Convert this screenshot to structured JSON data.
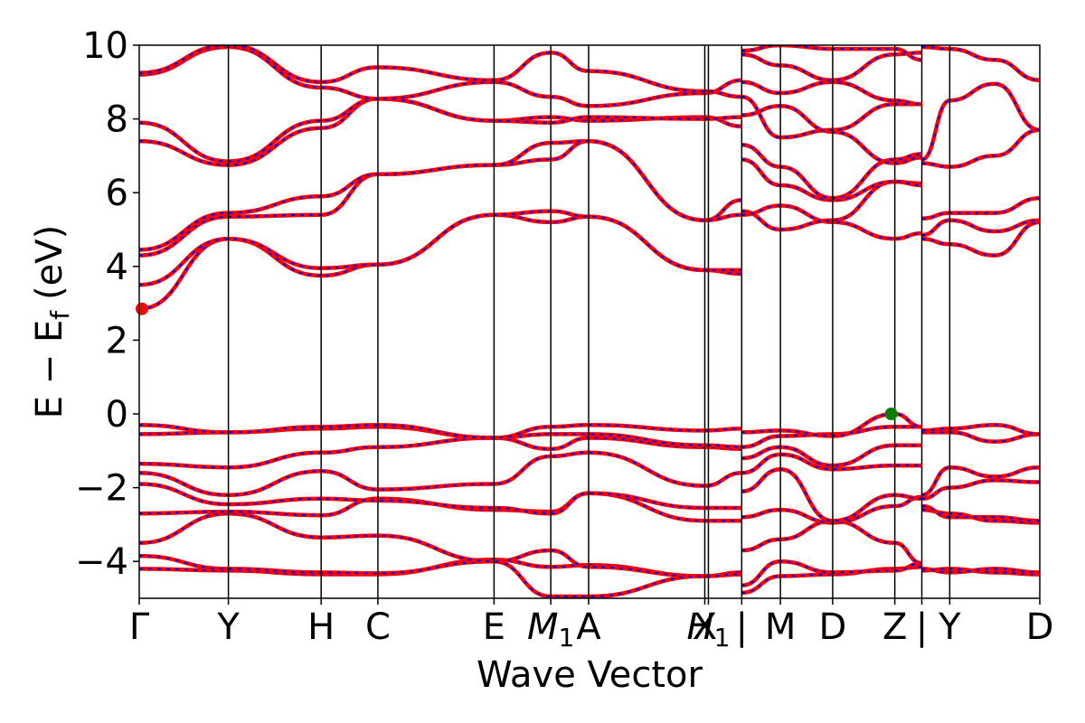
{
  "chart_data": {
    "type": "line",
    "xlabel": "Wave Vector",
    "ylabel": "E − E_f (eV)",
    "ylabel_parts": {
      "main": "E − E",
      "sub": "f",
      "unit": "(eV)"
    },
    "ylim": [
      -5,
      10
    ],
    "xlim": [
      0,
      10
    ],
    "y_ticks": [
      -4,
      -2,
      0,
      2,
      4,
      6,
      8,
      10
    ],
    "y_tick_labels": [
      "−4",
      "−2",
      "0",
      "2",
      "4",
      "6",
      "8",
      "10"
    ],
    "segment_breaks": [
      6.69,
      8.69
    ],
    "kpoints": [
      {
        "x": 0.0,
        "label": "Γ"
      },
      {
        "x": 0.99,
        "label": "Y"
      },
      {
        "x": 2.02,
        "label": "H"
      },
      {
        "x": 2.65,
        "label": "C"
      },
      {
        "x": 3.94,
        "label": "E"
      },
      {
        "x": 4.57,
        "label": "M",
        "sub": "1"
      },
      {
        "x": 4.99,
        "label": "A"
      },
      {
        "x": 6.28,
        "label": "X"
      },
      {
        "x": 6.32,
        "label": "H",
        "sub": "1"
      },
      {
        "x": 6.69,
        "label": "|"
      },
      {
        "x": 7.12,
        "label": "M"
      },
      {
        "x": 7.7,
        "label": "D"
      },
      {
        "x": 8.39,
        "label": "Z"
      },
      {
        "x": 8.69,
        "label": "|"
      },
      {
        "x": 9.0,
        "label": "Y"
      },
      {
        "x": 10.0,
        "label": "D"
      }
    ],
    "series": [
      {
        "style": "solid",
        "color": "#ff0000"
      },
      {
        "style": "dashed",
        "color": "#0000ff"
      }
    ],
    "bands": [
      {
        "x": [
          0,
          0.99,
          2.02,
          2.65,
          3.94,
          4.57,
          4.99,
          6.28,
          6.69
        ],
        "y": [
          -4.2,
          -4.25,
          -4.35,
          -4.35,
          -3.95,
          -4.15,
          -4.1,
          -4.4,
          -4.35
        ]
      },
      {
        "x": [
          0,
          0.99,
          2.02,
          2.65,
          3.94,
          4.57,
          4.99,
          6.28,
          6.69
        ],
        "y": [
          -3.85,
          -4.2,
          -4.3,
          -4.32,
          -4.0,
          -3.7,
          -4.15,
          -4.4,
          -4.3
        ]
      },
      {
        "x": [
          0,
          0.99,
          2.02,
          2.65,
          3.94,
          4.57,
          4.99,
          6.28,
          6.69
        ],
        "y": [
          -3.5,
          -2.7,
          -3.35,
          -3.3,
          -4.0,
          -4.95,
          -4.95,
          -4.4,
          -4.35
        ]
      },
      {
        "x": [
          0,
          0.99,
          2.02,
          2.65,
          3.94,
          4.57,
          4.99,
          6.28,
          6.69
        ],
        "y": [
          -2.7,
          -2.65,
          -2.75,
          -2.3,
          -2.6,
          -2.65,
          -2.15,
          -2.9,
          -2.9
        ]
      },
      {
        "x": [
          0,
          0.99,
          2.02,
          2.65,
          3.94,
          4.57,
          4.99,
          6.28,
          6.69
        ],
        "y": [
          -1.9,
          -2.45,
          -2.3,
          -2.35,
          -2.55,
          -2.7,
          -2.15,
          -2.55,
          -2.55
        ]
      },
      {
        "x": [
          0,
          0.99,
          2.02,
          2.65,
          3.94,
          4.57,
          4.99,
          6.28,
          6.69
        ],
        "y": [
          -1.6,
          -2.2,
          -1.55,
          -2.05,
          -1.9,
          -1.15,
          -1.05,
          -1.95,
          -1.6
        ]
      },
      {
        "x": [
          0,
          0.99,
          2.02,
          2.65,
          3.94,
          4.57,
          4.99,
          6.28,
          6.69
        ],
        "y": [
          -1.35,
          -1.45,
          -1.05,
          -0.9,
          -0.65,
          -0.95,
          -0.65,
          -0.9,
          -0.95
        ]
      },
      {
        "x": [
          0,
          0.99,
          2.02,
          2.65,
          3.94,
          4.57,
          4.99,
          6.28,
          6.69
        ],
        "y": [
          -0.55,
          -0.5,
          -0.4,
          -0.35,
          -0.65,
          -0.55,
          -0.55,
          -0.85,
          -0.9
        ]
      },
      {
        "x": [
          0,
          0.99,
          2.02,
          2.65,
          3.94,
          4.57,
          4.99,
          6.28,
          6.69
        ],
        "y": [
          -0.3,
          -0.5,
          -0.35,
          -0.3,
          -0.65,
          -0.35,
          -0.3,
          -0.45,
          -0.4
        ]
      },
      {
        "x": [
          0,
          0.99,
          2.02,
          2.65,
          3.94,
          4.57,
          4.99,
          6.28,
          6.69
        ],
        "y": [
          2.85,
          4.75,
          3.75,
          4.05,
          5.4,
          5.2,
          5.35,
          3.9,
          3.8
        ]
      },
      {
        "x": [
          0,
          0.99,
          2.02,
          2.65,
          3.94,
          4.57,
          4.99,
          6.28,
          6.69
        ],
        "y": [
          3.5,
          4.75,
          3.95,
          4.05,
          5.4,
          5.5,
          5.35,
          3.9,
          3.9
        ]
      },
      {
        "x": [
          0,
          0.99,
          2.02,
          2.65,
          3.94,
          4.57,
          4.99,
          6.28,
          6.69
        ],
        "y": [
          4.3,
          5.35,
          5.4,
          6.5,
          6.75,
          6.9,
          7.4,
          5.25,
          5.8
        ]
      },
      {
        "x": [
          0,
          0.99,
          2.02,
          2.65,
          3.94,
          4.57,
          4.99,
          6.28,
          6.69
        ],
        "y": [
          4.45,
          5.45,
          5.9,
          6.5,
          6.75,
          7.35,
          7.4,
          5.25,
          5.4
        ]
      },
      {
        "x": [
          0,
          0.99,
          2.02,
          2.65,
          3.94,
          4.57,
          4.99,
          6.28,
          6.69
        ],
        "y": [
          7.4,
          6.75,
          7.75,
          8.55,
          7.95,
          8.05,
          7.95,
          8.05,
          7.8
        ]
      },
      {
        "x": [
          0,
          0.99,
          2.02,
          2.65,
          3.94,
          4.57,
          4.99,
          6.28,
          6.69
        ],
        "y": [
          7.9,
          6.85,
          7.95,
          8.55,
          7.95,
          7.9,
          8.05,
          8.0,
          8.05
        ]
      },
      {
        "x": [
          0,
          0.99,
          2.02,
          2.65,
          3.94,
          4.57,
          4.99,
          6.28,
          6.69
        ],
        "y": [
          9.2,
          9.95,
          8.85,
          8.55,
          9.0,
          8.6,
          8.35,
          8.7,
          9.05
        ]
      },
      {
        "x": [
          0,
          0.99,
          2.02,
          2.65,
          3.94,
          4.57,
          4.99,
          6.28,
          6.69
        ],
        "y": [
          9.25,
          10.0,
          9.0,
          9.4,
          9.05,
          9.8,
          9.3,
          8.75,
          8.6
        ]
      },
      {
        "x": [
          6.69,
          7.12,
          7.7,
          8.39,
          8.69
        ],
        "y": [
          -4.85,
          -4.4,
          -4.35,
          -4.2,
          -4.15
        ]
      },
      {
        "x": [
          6.69,
          7.12,
          7.7,
          8.39,
          8.69
        ],
        "y": [
          -4.65,
          -4.0,
          -4.3,
          -4.25,
          -4.05
        ]
      },
      {
        "x": [
          6.69,
          7.12,
          7.7,
          8.39,
          8.69
        ],
        "y": [
          -3.7,
          -3.4,
          -2.9,
          -3.5,
          -4.05
        ]
      },
      {
        "x": [
          6.69,
          7.12,
          7.7,
          8.39,
          8.69
        ],
        "y": [
          -2.8,
          -2.6,
          -2.95,
          -2.5,
          -2.25
        ]
      },
      {
        "x": [
          6.69,
          7.12,
          7.7,
          8.39,
          8.69
        ],
        "y": [
          -2.1,
          -1.5,
          -2.9,
          -2.2,
          -2.3
        ]
      },
      {
        "x": [
          6.69,
          7.12,
          7.7,
          8.39,
          8.69
        ],
        "y": [
          -1.6,
          -1.1,
          -1.5,
          -1.4,
          -1.4
        ]
      },
      {
        "x": [
          6.69,
          7.12,
          7.7,
          8.39,
          8.69
        ],
        "y": [
          -1.2,
          -0.9,
          -1.4,
          -0.85,
          -0.85
        ]
      },
      {
        "x": [
          6.69,
          7.12,
          7.7,
          8.39,
          8.69
        ],
        "y": [
          -0.9,
          -0.6,
          -0.55,
          -0.35,
          -0.35
        ]
      },
      {
        "x": [
          6.69,
          7.12,
          7.7,
          8.39,
          8.69
        ],
        "y": [
          -0.5,
          -0.45,
          -0.6,
          0.0,
          -0.35
        ]
      },
      {
        "x": [
          6.69,
          7.12,
          7.7,
          8.39,
          8.69
        ],
        "y": [
          5.4,
          5.65,
          5.2,
          4.75,
          4.9
        ]
      },
      {
        "x": [
          6.69,
          7.12,
          7.7,
          8.39,
          8.69
        ],
        "y": [
          5.5,
          5.0,
          5.25,
          6.3,
          6.25
        ]
      },
      {
        "x": [
          6.69,
          7.12,
          7.7,
          8.39,
          8.69
        ],
        "y": [
          6.9,
          6.2,
          5.8,
          6.3,
          6.2
        ]
      },
      {
        "x": [
          6.69,
          7.12,
          7.7,
          8.39,
          8.69
        ],
        "y": [
          7.3,
          6.7,
          5.85,
          6.9,
          7.05
        ]
      },
      {
        "x": [
          6.69,
          7.12,
          7.7,
          8.39,
          8.69
        ],
        "y": [
          8.1,
          8.35,
          7.65,
          6.8,
          6.95
        ]
      },
      {
        "x": [
          6.69,
          7.12,
          7.7,
          8.39,
          8.69
        ],
        "y": [
          8.6,
          7.5,
          7.7,
          8.4,
          8.4
        ]
      },
      {
        "x": [
          6.69,
          7.12,
          7.7,
          8.39,
          8.69
        ],
        "y": [
          9.0,
          8.7,
          9.0,
          8.5,
          8.4
        ]
      },
      {
        "x": [
          6.69,
          7.12,
          7.7,
          8.39,
          8.69
        ],
        "y": [
          9.75,
          9.45,
          9.05,
          9.75,
          9.8
        ]
      },
      {
        "x": [
          6.69,
          7.12,
          7.7,
          8.39,
          8.69
        ],
        "y": [
          9.85,
          10.0,
          9.9,
          9.9,
          9.6
        ]
      },
      {
        "x": [
          8.69,
          9.0,
          9.5,
          10.0
        ],
        "y": [
          -4.25,
          -4.2,
          -4.3,
          -4.35
        ]
      },
      {
        "x": [
          8.69,
          9.0,
          9.5,
          10.0
        ],
        "y": [
          -4.2,
          -4.3,
          -4.2,
          -4.3
        ]
      },
      {
        "x": [
          8.69,
          9.0,
          9.5,
          10.0
        ],
        "y": [
          -2.6,
          -2.7,
          -2.9,
          -2.95
        ]
      },
      {
        "x": [
          8.69,
          9.0,
          9.5,
          10.0
        ],
        "y": [
          -2.5,
          -2.8,
          -2.8,
          -2.9
        ]
      },
      {
        "x": [
          8.69,
          9.0,
          9.5,
          10.0
        ],
        "y": [
          -2.3,
          -2.0,
          -1.8,
          -1.85
        ]
      },
      {
        "x": [
          8.69,
          9.0,
          9.5,
          10.0
        ],
        "y": [
          -2.2,
          -1.45,
          -1.7,
          -1.45
        ]
      },
      {
        "x": [
          8.69,
          9.0,
          9.5,
          10.0
        ],
        "y": [
          -0.5,
          -0.5,
          -0.75,
          -0.55
        ]
      },
      {
        "x": [
          8.69,
          9.0,
          9.5,
          10.0
        ],
        "y": [
          -0.45,
          -0.4,
          -0.3,
          -0.55
        ]
      },
      {
        "x": [
          8.69,
          9.0,
          9.5,
          10.0
        ],
        "y": [
          4.75,
          4.6,
          4.3,
          5.2
        ]
      },
      {
        "x": [
          8.69,
          9.0,
          9.5,
          10.0
        ],
        "y": [
          4.85,
          5.25,
          4.95,
          5.25
        ]
      },
      {
        "x": [
          8.69,
          9.0,
          9.5,
          10.0
        ],
        "y": [
          5.3,
          5.45,
          5.45,
          5.85
        ]
      },
      {
        "x": [
          8.69,
          9.0,
          9.5,
          10.0
        ],
        "y": [
          6.8,
          6.7,
          7.0,
          7.7
        ]
      },
      {
        "x": [
          8.69,
          9.0,
          9.5,
          10.0
        ],
        "y": [
          9.95,
          9.9,
          9.6,
          9.05
        ]
      },
      {
        "x": [
          8.69,
          9.0,
          9.5,
          10.0
        ],
        "y": [
          6.9,
          8.5,
          8.95,
          7.7
        ]
      }
    ],
    "markers": [
      {
        "x": 0.03,
        "y": 2.85,
        "color": "#ff0000"
      },
      {
        "x": 8.35,
        "y": 0.0,
        "color": "#008000"
      }
    ]
  }
}
